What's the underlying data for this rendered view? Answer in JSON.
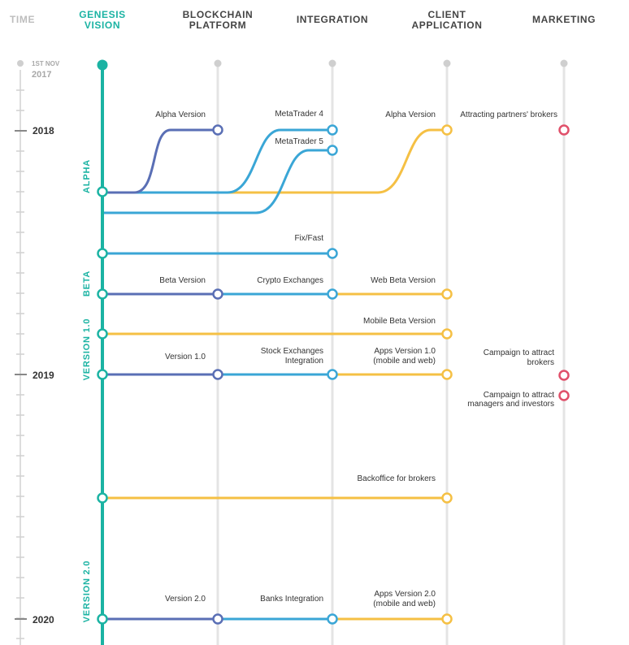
{
  "colors": {
    "teal": "#1bb3a3",
    "blue": "#5a6fb5",
    "lightblue": "#3aa6d6",
    "yellow": "#f5c044",
    "red": "#e0506a",
    "grey": "#cfcfcf",
    "text": "#333333",
    "muted": "#a8a8a8"
  },
  "headers": {
    "time": "TIME",
    "genesis_1": "GENESIS",
    "genesis_2": "VISION",
    "blockchain_1": "BLOCKCHAIN",
    "blockchain_2": "PLATFORM",
    "integration": "INTEGRATION",
    "client_1": "CLIENT",
    "client_2": "APPLICATION",
    "marketing": "MARKETING"
  },
  "time_axis": {
    "start_1": "1ST NOV",
    "start_2": "2017",
    "years": [
      "2018",
      "2019",
      "2020"
    ]
  },
  "phases": [
    "ALPHA",
    "BETA",
    "VERSION 1.0",
    "VERSION 2.0"
  ],
  "labels": {
    "alpha_version_bc": "Alpha Version",
    "metatrader4": "MetaTrader 4",
    "metatrader5": "MetaTrader 5",
    "alpha_version_client": "Alpha Version",
    "attracting_brokers": "Attracting partners' brokers",
    "fix_fast": "Fix/Fast",
    "beta_version": "Beta Version",
    "crypto_exchanges": "Crypto Exchanges",
    "web_beta": "Web Beta Version",
    "mobile_beta": "Mobile Beta Version",
    "version10": "Version 1.0",
    "stock_exchanges_1": "Stock Exchanges",
    "stock_exchanges_2": "Integration",
    "apps10_1": "Apps Version 1.0",
    "apps10_2": "(mobile and web)",
    "campaign_brokers_1": "Campaign to attract",
    "campaign_brokers_2": "brokers",
    "campaign_managers_1": "Campaign to attract",
    "campaign_managers_2": "managers and investors",
    "backoffice": "Backoffice for brokers",
    "version20": "Version 2.0",
    "banks_integration": "Banks Integration",
    "apps20_1": "Apps Version 2.0",
    "apps20_2": "(mobile and web)"
  }
}
